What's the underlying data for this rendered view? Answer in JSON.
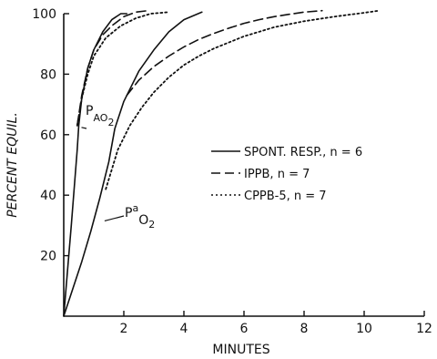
{
  "chart_data": {
    "type": "line",
    "title": "",
    "xlabel": "MINUTES",
    "ylabel": "PERCENT EQUIL.",
    "xlim": [
      0,
      12
    ],
    "ylim": [
      0,
      100
    ],
    "xticks": [
      "2",
      "4",
      "6",
      "8",
      "10",
      "12"
    ],
    "yticks": [
      "20",
      "40",
      "60",
      "80",
      "100"
    ],
    "grid": false,
    "legend_position": "center-right",
    "series": [
      {
        "name": "SPONT. RESP., n = 6",
        "style": "solid",
        "group": "PAO2",
        "x": [
          0,
          0.25,
          0.45,
          0.5,
          0.6,
          0.8,
          1.0,
          1.3,
          1.6,
          1.9,
          2.1
        ],
        "y": [
          0,
          30,
          55,
          63,
          72,
          82,
          88,
          94,
          98,
          100,
          100
        ]
      },
      {
        "name": "IPPB, n = 7",
        "style": "dashed",
        "group": "PAO2",
        "x": [
          0.45,
          0.6,
          0.8,
          1.0,
          1.3,
          1.6,
          2.0,
          2.4,
          2.8
        ],
        "y": [
          63,
          73,
          82,
          88,
          93,
          96,
          99,
          100.5,
          101
        ]
      },
      {
        "name": "CPPB-5, n = 7",
        "style": "dotted",
        "group": "PAO2",
        "x": [
          0.45,
          0.6,
          0.8,
          1.0,
          1.4,
          1.9,
          2.4,
          2.9,
          3.5
        ],
        "y": [
          63,
          72,
          80,
          86,
          92,
          96,
          98.5,
          100,
          100.5
        ]
      },
      {
        "name": "SPONT. RESP., n = 6",
        "style": "solid",
        "group": "PaO2",
        "x": [
          0,
          0.3,
          0.6,
          0.9,
          1.2,
          1.5,
          1.7,
          2.0,
          2.5,
          3.0,
          3.5,
          4.0,
          4.6
        ],
        "y": [
          0,
          9,
          18,
          28,
          39,
          51,
          62,
          71,
          81,
          88,
          94,
          98,
          100.5
        ]
      },
      {
        "name": "IPPB, n = 7",
        "style": "dashed",
        "group": "PaO2",
        "x": [
          2.1,
          2.5,
          3.0,
          3.5,
          4.0,
          4.5,
          5.0,
          5.5,
          6.0,
          6.5,
          7.0,
          7.5,
          8.0,
          8.6
        ],
        "y": [
          73,
          78,
          82.5,
          86,
          89,
          91.5,
          93.5,
          95.2,
          96.8,
          98,
          99,
          99.8,
          100.5,
          101
        ]
      },
      {
        "name": "CPPB-5, n = 7",
        "style": "dotted",
        "group": "PaO2",
        "x": [
          1.4,
          1.8,
          2.2,
          2.6,
          3.0,
          3.5,
          4.0,
          4.5,
          5.0,
          6.0,
          7.0,
          8.0,
          9.0,
          10.0,
          10.5
        ],
        "y": [
          42,
          55,
          63,
          69,
          74,
          79,
          83,
          86,
          88.5,
          92.5,
          95.5,
          97.5,
          99,
          100.3,
          101
        ]
      }
    ],
    "legend": [
      {
        "label": "SPONT. RESP., n = 6",
        "style": "solid"
      },
      {
        "label": "IPPB, n = 7",
        "style": "dashed"
      },
      {
        "label": "CPPB-5, n = 7",
        "style": "dotted"
      }
    ],
    "annotations": {
      "pao2_alveolar": {
        "main": "P",
        "sub": "AO",
        "tail": "2",
        "x": 0.5,
        "y": 63
      },
      "pao2_arterial": {
        "main": "P",
        "sub": "a",
        "tail": "O",
        "tail_sub": "2",
        "x": 1.3,
        "y": 33
      }
    }
  }
}
